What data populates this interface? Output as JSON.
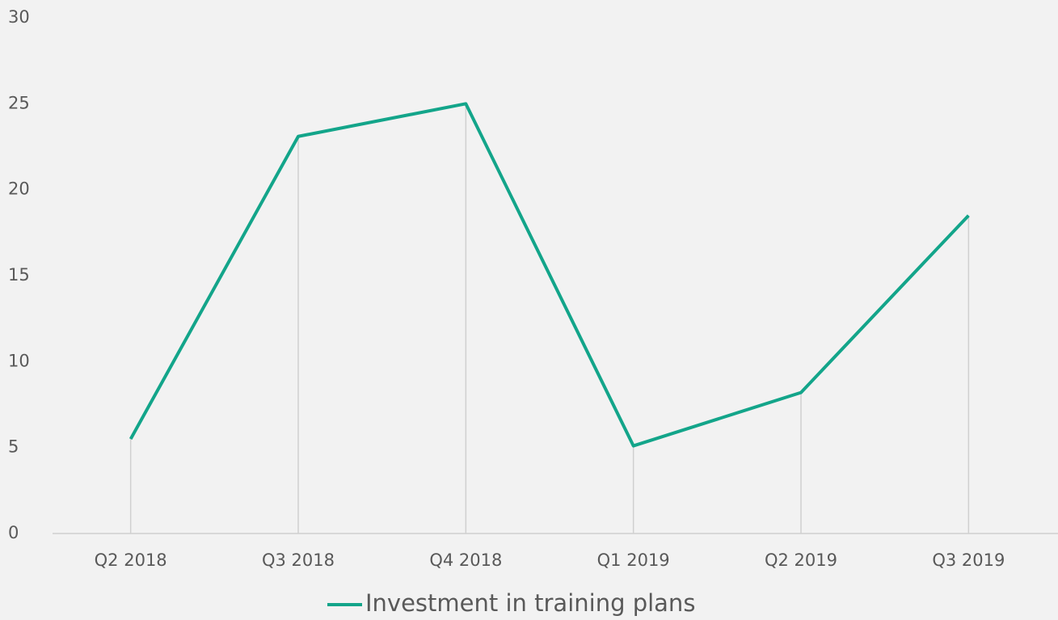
{
  "chart_data": {
    "type": "line",
    "categories": [
      "Q2 2018",
      "Q3 2018",
      "Q4 2018",
      "Q1 2019",
      "Q2 2019",
      "Q3 2019"
    ],
    "series": [
      {
        "name": "Investment in training plans",
        "color": "#13a58a",
        "values": [
          5.5,
          23.1,
          25,
          5.1,
          8.2,
          18.5
        ]
      }
    ],
    "ylim": [
      0,
      30
    ],
    "yticks": [
      0,
      5,
      10,
      15,
      20,
      25,
      30
    ],
    "drop_lines": true,
    "legend": "bottom"
  }
}
